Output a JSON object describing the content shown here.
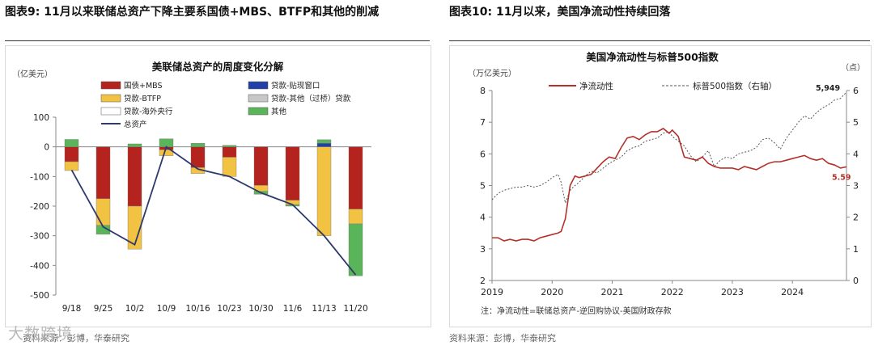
{
  "titles": {
    "fig9": "图表9:  11月以来联储总资产下降主要系国债+MBS、BTFP和其他的削减",
    "fig10": "图表10:  11月以来，美国净流动性持续回落"
  },
  "sources": {
    "fig9": "资料来源：彭博，华泰研究",
    "fig10": "资料来源：彭博，华泰研究"
  },
  "watermark": "大数跨境",
  "footnote": "注：净流动性=联储总资产-逆回购协议-美国财政存款",
  "colors": {
    "treasury_mbs": "#b5231e",
    "discount_window": "#2040a8",
    "btfp": "#f2c243",
    "other_credit": "#c8c8c8",
    "fx_central": "#ffffff",
    "other": "#5ab45a",
    "total": "#2e3a6b",
    "net_liquidity": "#b5302a",
    "sp500": "#555555"
  },
  "chart_data": [
    {
      "type": "bar",
      "stacked": true,
      "title": "美联储总资产的周度变化分解",
      "unit_label": "（亿美元）",
      "categories": [
        "9/18",
        "9/25",
        "10/2",
        "10/9",
        "10/16",
        "10/23",
        "10/30",
        "11/6",
        "11/13",
        "11/20"
      ],
      "ylim": [
        -500,
        100
      ],
      "yticks": [
        100,
        0,
        -100,
        -200,
        -300,
        -400,
        -500
      ],
      "legend": {
        "treasury_mbs": "国债+MBS",
        "discount_window": "贷款-贴现窗口",
        "btfp": "贷款-BTFP",
        "other_credit": "贷款-其他（过桥）贷款",
        "fx_central": "贷款-海外央行",
        "other": "其他",
        "total": "总资产"
      },
      "series": [
        {
          "key": "treasury_mbs",
          "name": "国债+MBS",
          "values": [
            -50,
            -175,
            -200,
            -10,
            -70,
            -35,
            -130,
            -180,
            0,
            -210
          ]
        },
        {
          "key": "discount_window",
          "name": "贷款-贴现窗口",
          "values": [
            0,
            0,
            0,
            0,
            0,
            0,
            0,
            0,
            12,
            0
          ]
        },
        {
          "key": "btfp",
          "name": "贷款-BTFP",
          "values": [
            -30,
            -90,
            -145,
            -20,
            -20,
            -65,
            -20,
            -15,
            -300,
            -50
          ]
        },
        {
          "key": "other_credit",
          "name": "贷款-其他（过桥）贷款",
          "values": [
            0,
            0,
            0,
            0,
            0,
            0,
            0,
            0,
            0,
            0
          ]
        },
        {
          "key": "fx_central",
          "name": "贷款-海外央行",
          "values": [
            0,
            0,
            0,
            0,
            0,
            0,
            0,
            0,
            0,
            0
          ]
        },
        {
          "key": "other",
          "name": "其他",
          "values": [
            25,
            -30,
            10,
            27,
            12,
            5,
            -10,
            -5,
            12,
            -175
          ]
        }
      ],
      "total": {
        "name": "总资产",
        "values": [
          -78,
          -270,
          -330,
          0,
          -75,
          -100,
          -155,
          -195,
          -300,
          -432
        ]
      }
    },
    {
      "type": "line",
      "title": "美国净流动性与标普500指数",
      "left_unit": "（万亿美元）",
      "right_unit": "（点）",
      "x_ticks": [
        2019,
        2020,
        2021,
        2022,
        2023,
        2024
      ],
      "xlim": [
        2019,
        2024.9
      ],
      "ylim_left": [
        2,
        8
      ],
      "ylim_right": [
        0,
        6
      ],
      "yticks_left": [
        2,
        3,
        4,
        5,
        6,
        7,
        8
      ],
      "yticks_right": [
        0,
        1,
        2,
        3,
        4,
        5,
        6
      ],
      "annotation_left_last": "5.59",
      "annotation_right_last": "5,949",
      "series": [
        {
          "name": "净流动性",
          "axis": "left",
          "x": [
            2019.0,
            2019.1,
            2019.2,
            2019.3,
            2019.4,
            2019.5,
            2019.6,
            2019.7,
            2019.8,
            2019.9,
            2020.0,
            2020.1,
            2020.15,
            2020.22,
            2020.3,
            2020.38,
            2020.45,
            2020.55,
            2020.65,
            2020.75,
            2020.85,
            2020.95,
            2021.05,
            2021.15,
            2021.25,
            2021.35,
            2021.45,
            2021.55,
            2021.65,
            2021.75,
            2021.85,
            2021.95,
            2022.0,
            2022.1,
            2022.2,
            2022.3,
            2022.4,
            2022.5,
            2022.6,
            2022.7,
            2022.8,
            2022.9,
            2023.0,
            2023.1,
            2023.2,
            2023.3,
            2023.4,
            2023.5,
            2023.6,
            2023.7,
            2023.8,
            2023.9,
            2024.0,
            2024.1,
            2024.2,
            2024.3,
            2024.4,
            2024.5,
            2024.6,
            2024.7,
            2024.8,
            2024.9
          ],
          "y": [
            3.35,
            3.35,
            3.25,
            3.3,
            3.25,
            3.3,
            3.3,
            3.25,
            3.35,
            3.4,
            3.45,
            3.5,
            3.55,
            3.95,
            5.0,
            5.3,
            5.25,
            5.3,
            5.35,
            5.55,
            5.75,
            5.9,
            5.85,
            6.2,
            6.5,
            6.55,
            6.45,
            6.6,
            6.7,
            6.7,
            6.8,
            6.65,
            6.75,
            6.55,
            5.9,
            5.85,
            5.8,
            5.9,
            5.7,
            5.6,
            5.55,
            5.55,
            5.55,
            5.5,
            5.6,
            5.55,
            5.5,
            5.6,
            5.7,
            5.75,
            5.75,
            5.8,
            5.85,
            5.9,
            5.95,
            5.85,
            5.8,
            5.85,
            5.7,
            5.65,
            5.55,
            5.59
          ]
        },
        {
          "name": "标普500指数（右轴）",
          "axis": "right",
          "x": [
            2019.0,
            2019.1,
            2019.2,
            2019.3,
            2019.4,
            2019.5,
            2019.6,
            2019.7,
            2019.8,
            2019.9,
            2020.0,
            2020.1,
            2020.15,
            2020.22,
            2020.3,
            2020.38,
            2020.45,
            2020.55,
            2020.65,
            2020.75,
            2020.85,
            2020.95,
            2021.05,
            2021.15,
            2021.25,
            2021.35,
            2021.45,
            2021.55,
            2021.65,
            2021.75,
            2021.85,
            2021.95,
            2022.0,
            2022.1,
            2022.2,
            2022.3,
            2022.4,
            2022.5,
            2022.6,
            2022.7,
            2022.8,
            2022.9,
            2023.0,
            2023.1,
            2023.2,
            2023.3,
            2023.4,
            2023.5,
            2023.6,
            2023.7,
            2023.8,
            2023.9,
            2024.0,
            2024.1,
            2024.2,
            2024.3,
            2024.4,
            2024.5,
            2024.6,
            2024.7,
            2024.8,
            2024.9
          ],
          "y": [
            2.55,
            2.75,
            2.85,
            2.9,
            2.95,
            2.95,
            3.0,
            2.95,
            3.0,
            3.1,
            3.25,
            3.35,
            3.1,
            2.45,
            2.85,
            3.0,
            3.1,
            3.3,
            3.45,
            3.4,
            3.55,
            3.7,
            3.8,
            3.9,
            4.1,
            4.2,
            4.25,
            4.4,
            4.45,
            4.5,
            4.65,
            4.7,
            4.55,
            4.4,
            4.25,
            3.95,
            3.75,
            3.9,
            4.1,
            3.6,
            3.8,
            3.9,
            3.85,
            4.0,
            4.05,
            4.1,
            4.2,
            4.45,
            4.5,
            4.35,
            4.15,
            4.5,
            4.75,
            5.0,
            5.2,
            5.1,
            5.3,
            5.45,
            5.55,
            5.7,
            5.75,
            5.95
          ]
        }
      ]
    }
  ]
}
